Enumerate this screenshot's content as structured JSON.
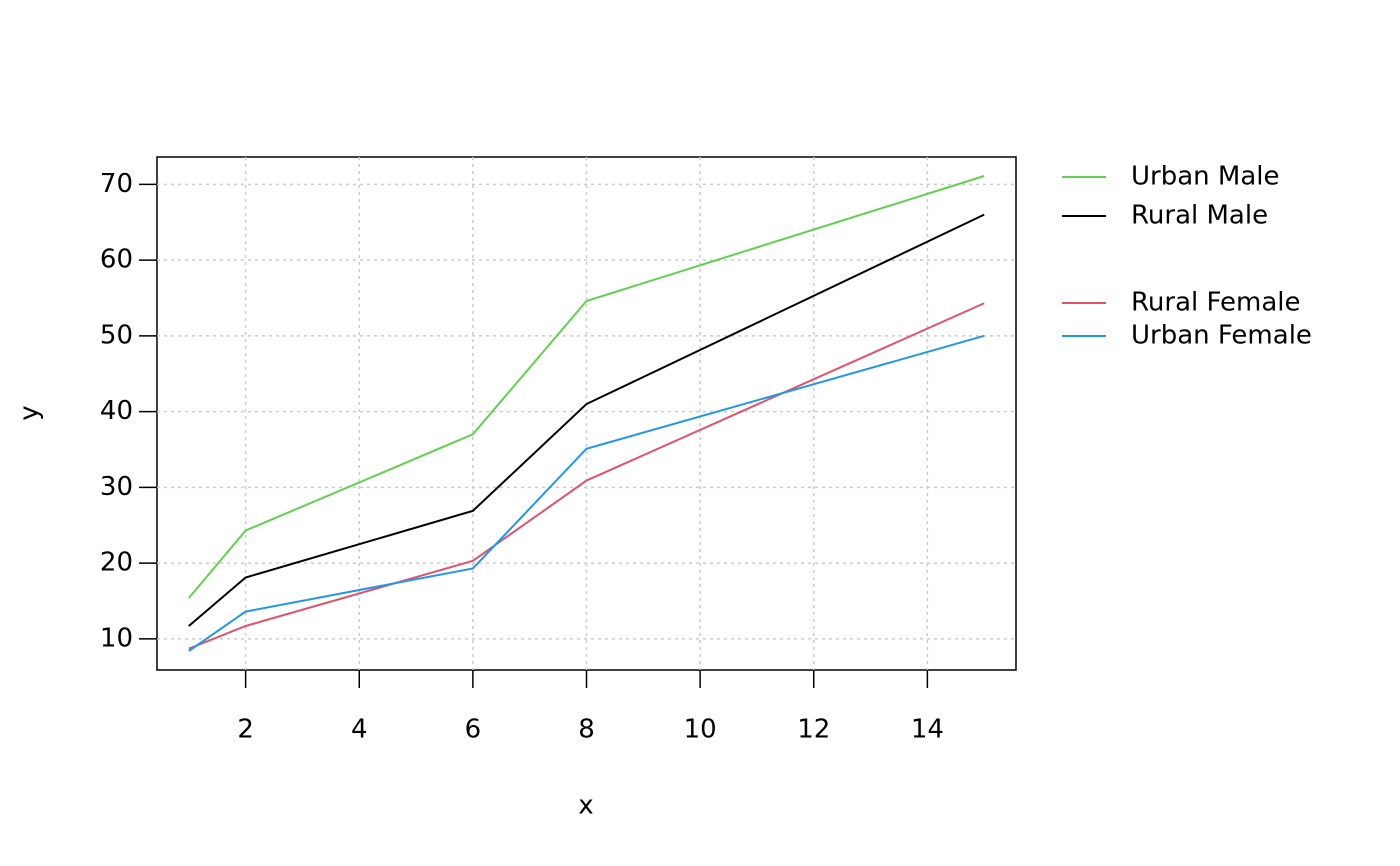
{
  "chart_data": {
    "type": "line",
    "x": [
      1,
      2,
      6,
      8,
      15
    ],
    "series": [
      {
        "name": "Urban Male",
        "color": "#61d04f",
        "values": [
          15.4,
          24.3,
          37.0,
          54.6,
          71.1
        ]
      },
      {
        "name": "Rural Male",
        "color": "#000000",
        "values": [
          11.7,
          18.1,
          26.9,
          41.0,
          66.0
        ]
      },
      {
        "name": "Rural Female",
        "color": "#df536b",
        "values": [
          8.7,
          11.7,
          20.3,
          30.9,
          54.3
        ]
      },
      {
        "name": "Urban Female",
        "color": "#2297e6",
        "values": [
          8.4,
          13.6,
          19.3,
          35.1,
          50.0
        ]
      }
    ],
    "xlabel": "x",
    "ylabel": "y",
    "xlim": [
      0.44,
      15.56
    ],
    "xticks": [
      2,
      4,
      6,
      8,
      10,
      12,
      14
    ],
    "ylim": [
      5.892,
      73.608
    ],
    "yticks": [
      10,
      20,
      30,
      40,
      50,
      60,
      70
    ],
    "grid": true,
    "legend": "outside-right"
  }
}
